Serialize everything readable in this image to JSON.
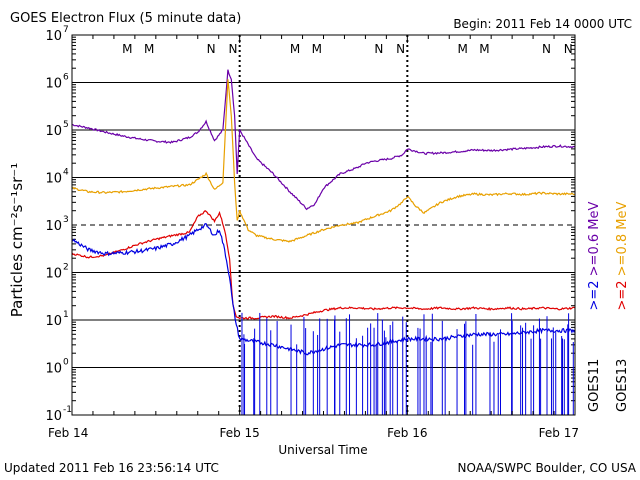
{
  "chart_data": {
    "type": "line",
    "title": "GOES Electron Flux (5 minute data)",
    "begin_label": "Begin: 2011 Feb 14 0000 UTC",
    "xlabel": "Universal Time",
    "ylabel": "Particles cm⁻²s⁻¹sr⁻¹",
    "footer_left": "Updated 2011 Feb 16 23:56:14 UTC",
    "footer_right": "NOAA/SWPC Boulder, CO USA",
    "x_unit": "days since 2011 Feb 14 0000 UTC",
    "xlim": [
      0,
      3
    ],
    "x_ticks": [
      {
        "value": 0,
        "label": "Feb 14"
      },
      {
        "value": 1,
        "label": "Feb 15"
      },
      {
        "value": 2,
        "label": "Feb 16"
      },
      {
        "value": 3,
        "label": "Feb 17"
      }
    ],
    "y_scale": "log",
    "ylim": [
      0.1,
      10000000
    ],
    "y_ticks": [
      {
        "exp": -1,
        "label": "10",
        "sup": "-1"
      },
      {
        "exp": 0,
        "label": "10",
        "sup": "0"
      },
      {
        "exp": 1,
        "label": "10",
        "sup": "1"
      },
      {
        "exp": 2,
        "label": "10",
        "sup": "2"
      },
      {
        "exp": 3,
        "label": "10",
        "sup": "3"
      },
      {
        "exp": 4,
        "label": "10",
        "sup": "4"
      },
      {
        "exp": 5,
        "label": "10",
        "sup": "5"
      },
      {
        "exp": 6,
        "label": "10",
        "sup": "6"
      },
      {
        "exp": 7,
        "label": "10",
        "sup": "7"
      }
    ],
    "dashed_threshold": 1000,
    "day_boundaries": [
      1,
      2
    ],
    "markers": [
      {
        "t": 0.33,
        "label": "M",
        "color": "#e00000"
      },
      {
        "t": 0.46,
        "label": "M",
        "color": "#0000e0"
      },
      {
        "t": 0.83,
        "label": "N",
        "color": "#e00000"
      },
      {
        "t": 0.96,
        "label": "N",
        "color": "#0000e0"
      },
      {
        "t": 1.33,
        "label": "M",
        "color": "#e00000"
      },
      {
        "t": 1.46,
        "label": "M",
        "color": "#0000e0"
      },
      {
        "t": 1.83,
        "label": "N",
        "color": "#e00000"
      },
      {
        "t": 1.96,
        "label": "N",
        "color": "#0000e0"
      },
      {
        "t": 2.33,
        "label": "M",
        "color": "#e00000"
      },
      {
        "t": 2.46,
        "label": "M",
        "color": "#0000e0"
      },
      {
        "t": 2.83,
        "label": "N",
        "color": "#e00000"
      },
      {
        "t": 2.96,
        "label": "N",
        "color": "#0000e0"
      }
    ],
    "legend": [
      {
        "label": "GOES11",
        "color": "#000000"
      },
      {
        "label": ">=2",
        "color": "#0000e0"
      },
      {
        "label": ">=0.6 MeV",
        "color": "#6a00a8"
      },
      {
        "label": "GOES13",
        "color": "#000000"
      },
      {
        "label": ">=2",
        "color": "#e00000"
      },
      {
        "label": ">=0.8 MeV",
        "color": "#e8a000"
      }
    ],
    "series": [
      {
        "name": "GOES11 >=0.6 MeV",
        "color": "#6a00a8",
        "x": [
          0,
          0.1,
          0.2,
          0.3,
          0.4,
          0.5,
          0.6,
          0.7,
          0.75,
          0.8,
          0.85,
          0.9,
          0.93,
          0.95,
          0.97,
          0.985,
          1.0,
          1.05,
          1.1,
          1.2,
          1.3,
          1.4,
          1.45,
          1.5,
          1.6,
          1.7,
          1.75,
          1.8,
          1.9,
          1.97,
          2.0,
          2.05,
          2.1,
          2.2,
          2.3,
          2.4,
          2.5,
          2.6,
          2.7,
          2.8,
          2.9,
          3.0
        ],
        "y": [
          130000,
          110000,
          90000,
          75000,
          65000,
          58000,
          55000,
          70000,
          90000,
          150000,
          60000,
          100000,
          1800000,
          1200000,
          200000,
          12000,
          100000,
          50000,
          25000,
          12000,
          5000,
          2200,
          2800,
          6000,
          12000,
          16000,
          20000,
          22000,
          25000,
          30000,
          40000,
          36000,
          32000,
          33000,
          35000,
          38000,
          37000,
          39000,
          41000,
          44000,
          46000,
          44000
        ]
      },
      {
        "name": "GOES13 >=0.8 MeV",
        "color": "#e8a000",
        "x": [
          0,
          0.1,
          0.2,
          0.3,
          0.4,
          0.5,
          0.6,
          0.7,
          0.75,
          0.8,
          0.85,
          0.9,
          0.93,
          0.95,
          0.97,
          0.985,
          1.0,
          1.05,
          1.1,
          1.2,
          1.3,
          1.4,
          1.5,
          1.6,
          1.7,
          1.75,
          1.8,
          1.9,
          1.97,
          2.0,
          2.05,
          2.1,
          2.2,
          2.3,
          2.4,
          2.5,
          2.6,
          2.7,
          2.8,
          2.9,
          3.0
        ],
        "y": [
          6000,
          5000,
          4800,
          5000,
          5500,
          6000,
          6500,
          7000,
          9000,
          12000,
          5500,
          8000,
          1200000,
          200000,
          8000,
          1200,
          2000,
          800,
          600,
          500,
          450,
          600,
          800,
          1000,
          1100,
          1300,
          1500,
          2000,
          3000,
          4000,
          2500,
          1800,
          3000,
          4000,
          4500,
          4300,
          4600,
          4400,
          4700,
          4500,
          4500
        ]
      },
      {
        "name": "GOES13 >=2",
        "color": "#e00000",
        "x": [
          0,
          0.1,
          0.2,
          0.3,
          0.4,
          0.5,
          0.6,
          0.7,
          0.75,
          0.8,
          0.85,
          0.88,
          0.91,
          0.94,
          0.96,
          0.98,
          1.0,
          1.1,
          1.2,
          1.3,
          1.4,
          1.5,
          1.6,
          1.7,
          1.8,
          1.9,
          2.0,
          2.1,
          2.2,
          2.3,
          2.4,
          2.5,
          2.6,
          2.7,
          2.8,
          2.9,
          3.0
        ],
        "y": [
          250,
          210,
          230,
          300,
          400,
          500,
          600,
          700,
          1500,
          2000,
          1200,
          1800,
          800,
          200,
          20,
          12,
          11,
          11,
          12,
          11,
          13,
          16,
          18,
          18,
          17,
          18,
          18,
          17,
          18,
          17,
          18,
          17,
          18,
          17,
          18,
          17,
          18
        ]
      },
      {
        "name": "GOES11 >=2",
        "color": "#0000e0",
        "x": [
          0,
          0.1,
          0.2,
          0.3,
          0.4,
          0.5,
          0.6,
          0.7,
          0.75,
          0.8,
          0.85,
          0.88,
          0.91,
          0.94,
          0.96,
          0.98,
          1.0,
          1.2,
          1.4,
          1.6,
          1.8,
          2.0,
          2.2,
          2.4,
          2.6,
          2.8,
          3.0
        ],
        "y": [
          500,
          300,
          250,
          260,
          280,
          320,
          400,
          600,
          800,
          1000,
          600,
          800,
          300,
          80,
          20,
          8,
          4,
          3,
          2,
          3,
          3,
          4,
          4,
          5,
          5,
          6,
          6
        ]
      }
    ]
  }
}
